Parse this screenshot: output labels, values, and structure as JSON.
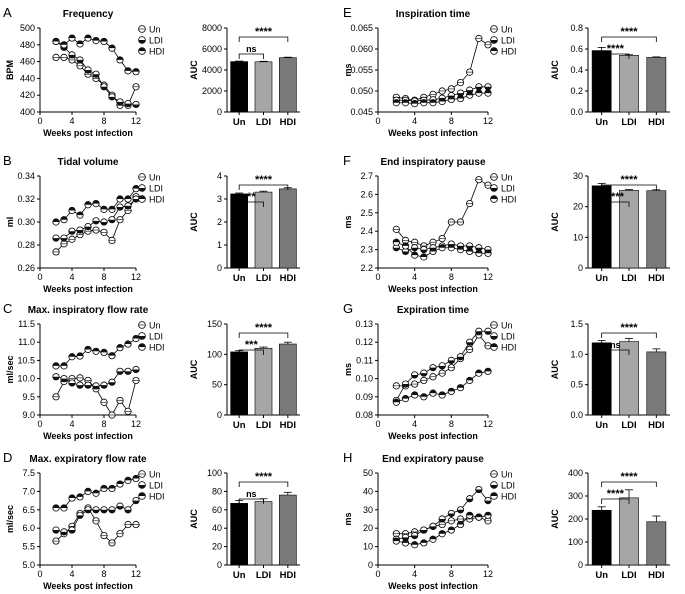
{
  "colors": {
    "un_fill": "#ffffff",
    "ldi_fill": "#111111",
    "hdi_fill": "#111111",
    "bar_un": "#000000",
    "bar_ldi": "#a6a6a6",
    "bar_hdi": "#7a7a7a",
    "axis": "#000000"
  },
  "chart_data": [
    {
      "panel": "A",
      "type": "line",
      "title": "Frequency",
      "xlabel": "Weeks post infection",
      "ylabel": "BPM",
      "x": [
        2,
        3,
        4,
        5,
        6,
        7,
        8,
        9,
        10,
        11,
        12
      ],
      "xlim": [
        0,
        12
      ],
      "xticks": [
        0,
        4,
        8,
        12
      ],
      "ylim": [
        400,
        500
      ],
      "yticks": [
        400,
        420,
        440,
        460,
        480,
        500
      ],
      "series": [
        {
          "name": "Un",
          "values": [
            465,
            465,
            462,
            455,
            445,
            440,
            432,
            420,
            408,
            408,
            430
          ]
        },
        {
          "name": "LDI",
          "values": [
            484,
            477,
            468,
            462,
            450,
            445,
            430,
            418,
            412,
            410,
            409
          ]
        },
        {
          "name": "HDI",
          "values": [
            484,
            480,
            488,
            481,
            488,
            485,
            484,
            476,
            462,
            449,
            448
          ]
        }
      ]
    },
    {
      "panel": "A",
      "type": "bar",
      "ylabel": "AUC",
      "categories": [
        "Un",
        "LDI",
        "HDI"
      ],
      "values": [
        4800,
        4780,
        5170
      ],
      "errors": [
        50,
        50,
        50
      ],
      "ylim": [
        0,
        8000
      ],
      "yticks": [
        0,
        2000,
        4000,
        6000,
        8000
      ],
      "sig": [
        {
          "from": 0,
          "to": 1,
          "label": "ns",
          "level": 1
        },
        {
          "from": 0,
          "to": 2,
          "label": "****",
          "level": 2
        }
      ]
    },
    {
      "panel": "B",
      "type": "line",
      "title": "Tidal volume",
      "xlabel": "Weeks post infection",
      "ylabel": "ml",
      "x": [
        2,
        3,
        4,
        5,
        6,
        7,
        8,
        9,
        10,
        11,
        12
      ],
      "xlim": [
        0,
        12
      ],
      "xticks": [
        0,
        4,
        8,
        12
      ],
      "ylim": [
        0.26,
        0.34
      ],
      "yticks": [
        0.26,
        0.28,
        0.3,
        0.32,
        0.34
      ],
      "series": [
        {
          "name": "Un",
          "values": [
            0.274,
            0.281,
            0.285,
            0.289,
            0.292,
            0.293,
            0.291,
            0.284,
            0.302,
            0.31,
            0.322
          ]
        },
        {
          "name": "LDI",
          "values": [
            0.286,
            0.286,
            0.292,
            0.293,
            0.296,
            0.301,
            0.3,
            0.302,
            0.313,
            0.314,
            0.32
          ]
        },
        {
          "name": "HDI",
          "values": [
            0.3,
            0.302,
            0.31,
            0.306,
            0.315,
            0.316,
            0.311,
            0.311,
            0.32,
            0.32,
            0.329
          ]
        }
      ]
    },
    {
      "panel": "B",
      "type": "bar",
      "ylabel": "AUC",
      "categories": [
        "Un",
        "LDI",
        "HDI"
      ],
      "values": [
        3.22,
        3.3,
        3.44
      ],
      "errors": [
        0.04,
        0.04,
        0.05
      ],
      "ylim": [
        0,
        4
      ],
      "yticks": [
        0,
        1,
        2,
        3,
        4
      ],
      "sig": [
        {
          "from": 0,
          "to": 1,
          "label": "**",
          "level": 1
        },
        {
          "from": 0,
          "to": 2,
          "label": "****",
          "level": 2
        }
      ]
    },
    {
      "panel": "C",
      "type": "line",
      "title": "Max. inspiratory flow rate",
      "xlabel": "Weeks post infection",
      "ylabel": "ml/sec",
      "x": [
        2,
        3,
        4,
        5,
        6,
        7,
        8,
        9,
        10,
        11,
        12
      ],
      "xlim": [
        0,
        12
      ],
      "xticks": [
        0,
        4,
        8,
        12
      ],
      "ylim": [
        9.0,
        11.5
      ],
      "yticks": [
        9.0,
        9.5,
        10.0,
        10.5,
        11.0,
        11.5
      ],
      "series": [
        {
          "name": "Un",
          "values": [
            9.5,
            9.92,
            10.0,
            10.02,
            9.95,
            9.72,
            9.35,
            9.0,
            9.4,
            9.1,
            9.95
          ]
        },
        {
          "name": "LDI",
          "values": [
            10.05,
            10.0,
            9.88,
            9.82,
            9.82,
            9.8,
            9.82,
            9.9,
            10.2,
            10.2,
            10.25
          ]
        },
        {
          "name": "HDI",
          "values": [
            10.35,
            10.35,
            10.6,
            10.62,
            10.8,
            10.75,
            10.72,
            10.63,
            10.85,
            10.95,
            11.1
          ]
        }
      ]
    },
    {
      "panel": "C",
      "type": "bar",
      "ylabel": "AUC",
      "categories": [
        "Un",
        "LDI",
        "HDI"
      ],
      "values": [
        104,
        110,
        117
      ],
      "errors": [
        2,
        2,
        3
      ],
      "ylim": [
        0,
        150
      ],
      "yticks": [
        0,
        50,
        100,
        150
      ],
      "sig": [
        {
          "from": 0,
          "to": 1,
          "label": "***",
          "level": 1
        },
        {
          "from": 0,
          "to": 2,
          "label": "****",
          "level": 2
        }
      ]
    },
    {
      "panel": "D",
      "type": "line",
      "title": "Max. expiratory flow rate",
      "xlabel": "Weeks post infection",
      "ylabel": "ml/sec",
      "x": [
        2,
        3,
        4,
        5,
        6,
        7,
        8,
        9,
        10,
        11,
        12
      ],
      "xlim": [
        0,
        12
      ],
      "xticks": [
        0,
        4,
        8,
        12
      ],
      "ylim": [
        5.0,
        7.5
      ],
      "yticks": [
        5.0,
        5.5,
        6.0,
        6.5,
        7.0,
        7.5
      ],
      "series": [
        {
          "name": "Un",
          "values": [
            5.65,
            5.85,
            6.05,
            6.4,
            6.55,
            6.2,
            5.8,
            5.6,
            5.85,
            6.1,
            6.1
          ]
        },
        {
          "name": "LDI",
          "values": [
            5.95,
            5.9,
            5.95,
            6.35,
            6.5,
            6.5,
            6.5,
            6.5,
            6.6,
            6.5,
            6.75
          ]
        },
        {
          "name": "HDI",
          "values": [
            6.55,
            6.55,
            6.82,
            6.85,
            7.0,
            6.95,
            7.08,
            7.08,
            7.2,
            7.3,
            7.35
          ]
        }
      ]
    },
    {
      "panel": "D",
      "type": "bar",
      "ylabel": "AUC",
      "categories": [
        "Un",
        "LDI",
        "HDI"
      ],
      "values": [
        67,
        69,
        76
      ],
      "errors": [
        3,
        3,
        3
      ],
      "ylim": [
        0,
        100
      ],
      "yticks": [
        0,
        20,
        40,
        60,
        80,
        100
      ],
      "sig": [
        {
          "from": 0,
          "to": 1,
          "label": "ns",
          "level": 1
        },
        {
          "from": 0,
          "to": 2,
          "label": "****",
          "level": 2
        }
      ]
    },
    {
      "panel": "E",
      "type": "line",
      "title": "Inspiration time",
      "xlabel": "Weeks post infection",
      "ylabel": "ms",
      "x": [
        2,
        3,
        4,
        5,
        6,
        7,
        8,
        9,
        10,
        11,
        12
      ],
      "xlim": [
        0,
        12
      ],
      "xticks": [
        0,
        4,
        8,
        12
      ],
      "ylim": [
        0.045,
        0.065
      ],
      "yticks": [
        0.045,
        0.05,
        0.055,
        0.06,
        0.065
      ],
      "series": [
        {
          "name": "Un",
          "values": [
            0.0485,
            0.0482,
            0.0478,
            0.0485,
            0.0492,
            0.05,
            0.0505,
            0.052,
            0.0545,
            0.0625,
            0.061
          ]
        },
        {
          "name": "LDI",
          "values": [
            0.0478,
            0.0478,
            0.0476,
            0.0478,
            0.0479,
            0.0483,
            0.0489,
            0.0495,
            0.0502,
            0.051,
            0.051
          ]
        },
        {
          "name": "HDI",
          "values": [
            0.0472,
            0.0472,
            0.047,
            0.0472,
            0.0472,
            0.0475,
            0.048,
            0.0482,
            0.049,
            0.0495,
            0.0495
          ]
        }
      ]
    },
    {
      "panel": "E",
      "type": "bar",
      "ylabel": "AUC",
      "categories": [
        "Un",
        "LDI",
        "HDI"
      ],
      "values": [
        0.585,
        0.54,
        0.52
      ],
      "errors": [
        0.03,
        0.005,
        0.005
      ],
      "ylim": [
        0,
        0.8
      ],
      "yticks": [
        0.0,
        0.2,
        0.4,
        0.6,
        0.8
      ],
      "sig": [
        {
          "from": 0,
          "to": 1,
          "label": "****",
          "level": 1
        },
        {
          "from": 0,
          "to": 2,
          "label": "****",
          "level": 2
        }
      ]
    },
    {
      "panel": "F",
      "type": "line",
      "title": "End inspiratory pause",
      "xlabel": "Weeks post infection",
      "ylabel": "ms",
      "x": [
        2,
        3,
        4,
        5,
        6,
        7,
        8,
        9,
        10,
        11,
        12
      ],
      "xlim": [
        0,
        12
      ],
      "xticks": [
        0,
        4,
        8,
        12
      ],
      "ylim": [
        2.2,
        2.7
      ],
      "yticks": [
        2.2,
        2.3,
        2.4,
        2.5,
        2.6,
        2.7
      ],
      "series": [
        {
          "name": "Un",
          "values": [
            2.41,
            2.35,
            2.34,
            2.32,
            2.34,
            2.36,
            2.45,
            2.45,
            2.55,
            2.68,
            2.65
          ]
        },
        {
          "name": "LDI",
          "values": [
            2.31,
            2.29,
            2.31,
            2.3,
            2.31,
            2.32,
            2.33,
            2.32,
            2.32,
            2.31,
            2.3
          ]
        },
        {
          "name": "HDI",
          "values": [
            2.34,
            2.32,
            2.27,
            2.26,
            2.29,
            2.31,
            2.31,
            2.3,
            2.29,
            2.28,
            2.28
          ]
        }
      ]
    },
    {
      "panel": "F",
      "type": "bar",
      "ylabel": "AUC",
      "categories": [
        "Un",
        "LDI",
        "HDI"
      ],
      "values": [
        26.8,
        25.3,
        25.2
      ],
      "errors": [
        0.8,
        0.3,
        0.3
      ],
      "ylim": [
        0,
        30
      ],
      "yticks": [
        0,
        10,
        20,
        30
      ],
      "sig": [
        {
          "from": 0,
          "to": 1,
          "label": "****",
          "level": 1
        },
        {
          "from": 0,
          "to": 2,
          "label": "****",
          "level": 2
        }
      ]
    },
    {
      "panel": "G",
      "type": "line",
      "title": "Expiration time",
      "xlabel": "Weeks post infection",
      "ylabel": "ms",
      "x": [
        2,
        3,
        4,
        5,
        6,
        7,
        8,
        9,
        10,
        11,
        12
      ],
      "xlim": [
        0,
        12
      ],
      "xticks": [
        0,
        4,
        8,
        12
      ],
      "ylim": [
        0.08,
        0.13
      ],
      "yticks": [
        0.08,
        0.09,
        0.1,
        0.11,
        0.12,
        0.13
      ],
      "series": [
        {
          "name": "Un",
          "values": [
            0.096,
            0.096,
            0.097,
            0.099,
            0.101,
            0.103,
            0.106,
            0.111,
            0.116,
            0.124,
            0.118
          ]
        },
        {
          "name": "LDI",
          "values": [
            0.088,
            0.097,
            0.102,
            0.103,
            0.106,
            0.107,
            0.11,
            0.112,
            0.12,
            0.126,
            0.126
          ]
        },
        {
          "name": "HDI",
          "values": [
            0.087,
            0.089,
            0.091,
            0.09,
            0.092,
            0.091,
            0.093,
            0.095,
            0.099,
            0.103,
            0.104
          ]
        }
      ]
    },
    {
      "panel": "G",
      "type": "bar",
      "ylabel": "AUC",
      "categories": [
        "Un",
        "LDI",
        "HDI"
      ],
      "values": [
        1.19,
        1.21,
        1.04
      ],
      "errors": [
        0.04,
        0.05,
        0.05
      ],
      "ylim": [
        0,
        1.5
      ],
      "yticks": [
        0.0,
        0.5,
        1.0,
        1.5
      ],
      "sig": [
        {
          "from": 0,
          "to": 1,
          "label": "ns",
          "level": 1
        },
        {
          "from": 0,
          "to": 2,
          "label": "****",
          "level": 2
        }
      ]
    },
    {
      "panel": "H",
      "type": "line",
      "title": "End expiratory pause",
      "xlabel": "Weeks post infection",
      "ylabel": "ms",
      "x": [
        2,
        3,
        4,
        5,
        6,
        7,
        8,
        9,
        10,
        11,
        12
      ],
      "xlim": [
        0,
        12
      ],
      "xticks": [
        0,
        4,
        8,
        12
      ],
      "ylim": [
        0,
        50
      ],
      "yticks": [
        0,
        10,
        20,
        30,
        40,
        50
      ],
      "series": [
        {
          "name": "Un",
          "values": [
            17,
            17,
            18,
            19,
            21,
            22,
            24,
            25,
            25,
            26,
            24
          ]
        },
        {
          "name": "LDI",
          "values": [
            14,
            15,
            16,
            19,
            21,
            25,
            28,
            30,
            36,
            41,
            35
          ]
        },
        {
          "name": "HDI",
          "values": [
            13,
            12,
            11,
            12,
            14,
            17,
            19,
            22,
            27,
            26,
            27
          ]
        }
      ]
    },
    {
      "panel": "H",
      "type": "bar",
      "ylabel": "AUC",
      "categories": [
        "Un",
        "LDI",
        "HDI"
      ],
      "values": [
        238,
        292,
        188
      ],
      "errors": [
        15,
        35,
        25
      ],
      "ylim": [
        0,
        400
      ],
      "yticks": [
        0,
        100,
        200,
        300,
        400
      ],
      "sig": [
        {
          "from": 0,
          "to": 1,
          "label": "****",
          "level": 1
        },
        {
          "from": 0,
          "to": 2,
          "label": "****",
          "level": 2
        }
      ]
    }
  ]
}
